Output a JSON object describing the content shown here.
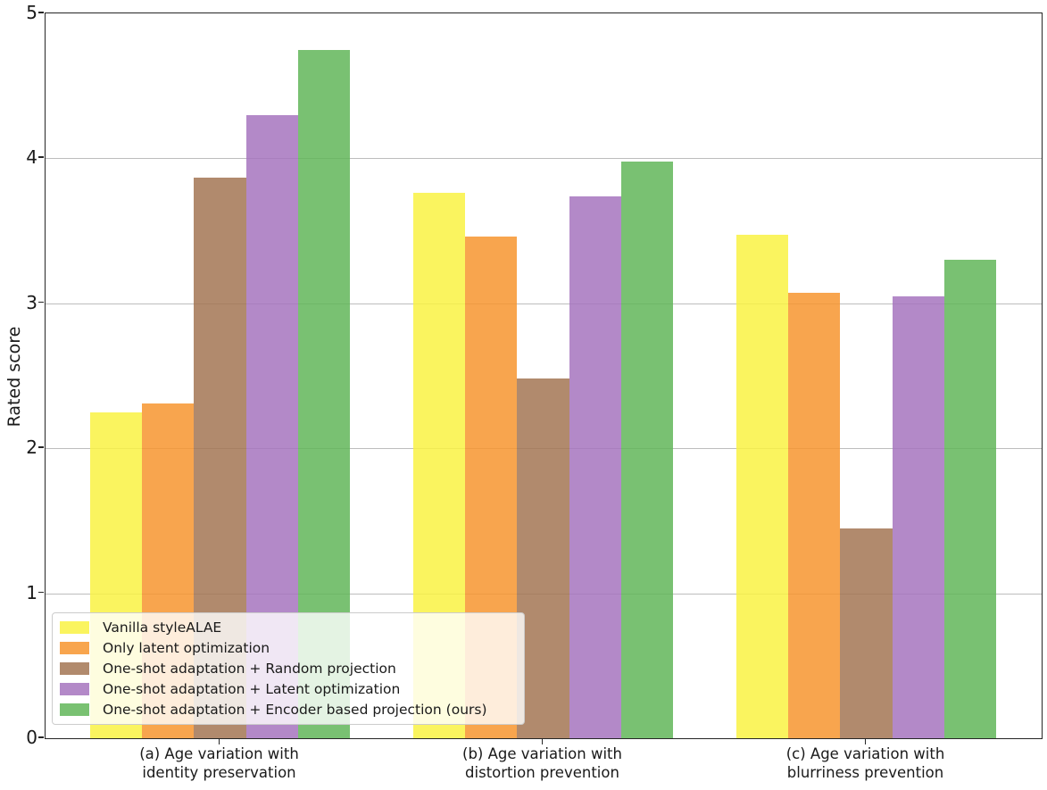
{
  "figure": {
    "background_color": "#ffffff",
    "text_color": "#1a1a1a",
    "spine_color": "#262626",
    "grid_color": "#bdbdbd",
    "legend_background": "rgba(255,255,255,0.8)",
    "legend_border_color": "#cccccc"
  },
  "chart_data": {
    "type": "bar",
    "title": "",
    "xlabel": "",
    "ylabel": "Rated score",
    "ylim": [
      0,
      5
    ],
    "yticks": [
      "0",
      "1",
      "2",
      "3",
      "4",
      "5"
    ],
    "grid": "horizontal gridlines at integer y values, drawn beneath semi-transparent bars",
    "legend_position": "lower left",
    "bar_alpha": 0.85,
    "categories": [
      {
        "line1": "(a) Age variation with",
        "line2": "identity preservation"
      },
      {
        "line1": "(b) Age variation with",
        "line2": "distortion prevention"
      },
      {
        "line1": "(c) Age variation with",
        "line2": "blurriness prevention"
      }
    ],
    "series": [
      {
        "name": "Vanilla styleALAE",
        "color": "#F9F243",
        "values": [
          2.25,
          3.76,
          3.47
        ]
      },
      {
        "name": "Only latent optimization",
        "color": "#F7952F",
        "values": [
          2.31,
          3.46,
          3.07
        ]
      },
      {
        "name": "One-shot adaptation + Random projection",
        "color": "#A37554",
        "values": [
          3.87,
          2.48,
          1.45
        ]
      },
      {
        "name": "One-shot adaptation + Latent optimization",
        "color": "#A674BE",
        "values": [
          4.3,
          3.74,
          3.05
        ]
      },
      {
        "name": "One-shot adaptation + Encoder based projection (ours)",
        "color": "#62B659",
        "values": [
          4.75,
          3.98,
          3.3
        ]
      }
    ]
  }
}
